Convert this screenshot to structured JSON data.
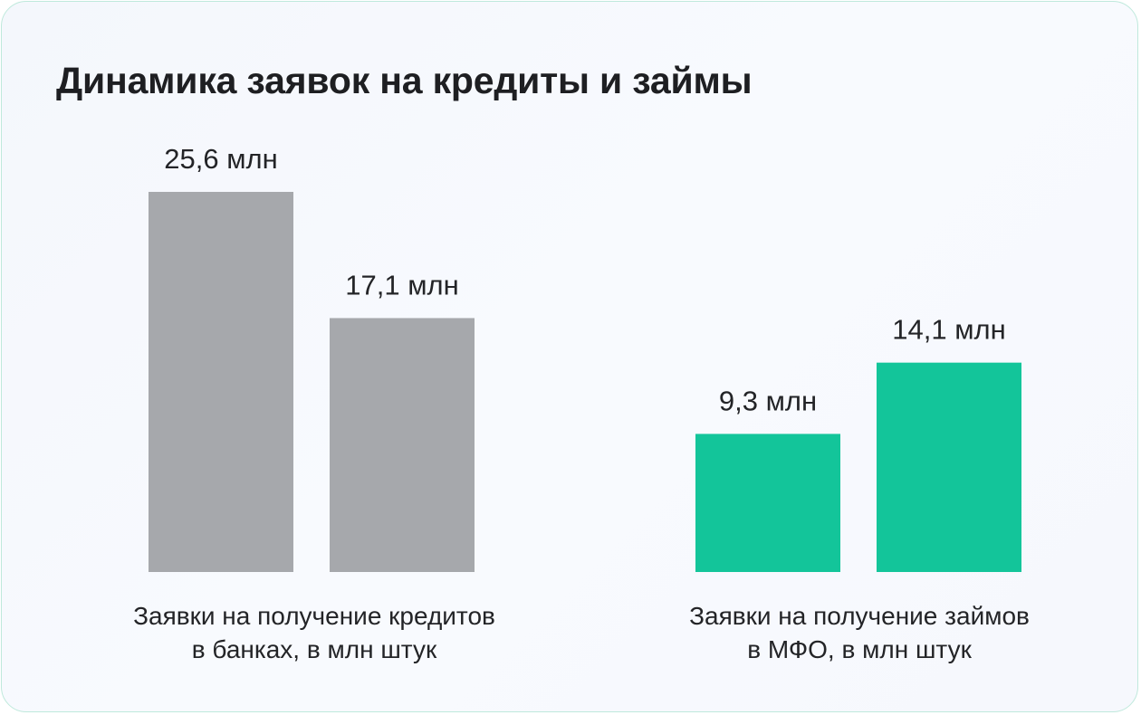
{
  "title": "Динамика заявок на кредиты и займы",
  "colors": {
    "banks": "#a6a8ac",
    "mfo": "#13c59a"
  },
  "chart_data": {
    "type": "bar",
    "title": "Динамика заявок на кредиты и займы",
    "unit": "млн",
    "groups": [
      {
        "name": "banks",
        "label_lines": [
          "Заявки на получение кредитов",
          "в банках, в млн штук"
        ],
        "color": "#a6a8ac",
        "values": [
          25.6,
          17.1
        ],
        "labels": [
          "25,6 млн",
          "17,1 млн"
        ]
      },
      {
        "name": "mfo",
        "label_lines": [
          "Заявки на получение займов",
          "в МФО, в млн штук"
        ],
        "color": "#13c59a",
        "values": [
          9.3,
          14.1
        ],
        "labels": [
          "9,3 млн",
          "14,1 млн"
        ]
      }
    ],
    "ylim": [
      0,
      25.6
    ],
    "grid": false,
    "legend": "none"
  }
}
